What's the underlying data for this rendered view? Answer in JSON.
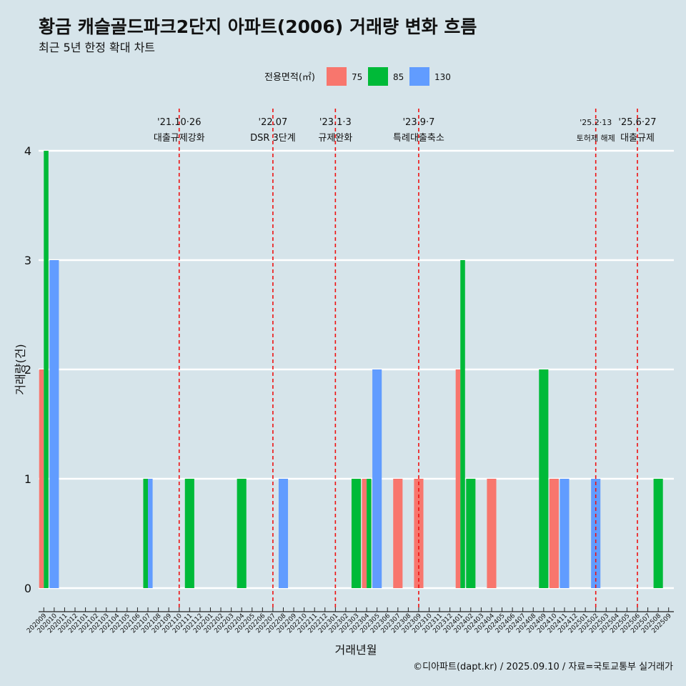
{
  "header": {
    "title": "황금 캐슬골드파크2단지 아파트(2006) 거래량 변화 흐름",
    "subtitle": "최근 5년 한정 확대 차트"
  },
  "caption": "©디아파트(dapt.kr) / 2025.09.10 / 자료=국토교통부 실거래가",
  "colors": {
    "s75": "#f8766d",
    "s85": "#00ba38",
    "s130": "#619cff",
    "event": "#ee1111",
    "grid": "#ffffff",
    "background": "#d6e4ea"
  },
  "chart_data": {
    "type": "bar",
    "title": "황금 캐슬골드파크2단지 아파트(2006) 거래량 변화 흐름",
    "xlabel": "거래년월",
    "ylabel": "거래량(건)",
    "ylim": [
      0,
      4
    ],
    "yticks": [
      0,
      1,
      2,
      3,
      4
    ],
    "legend": {
      "title": "전용면적(㎡)",
      "position": "top"
    },
    "categories": [
      "202009",
      "202010",
      "202011",
      "202012",
      "202101",
      "202102",
      "202103",
      "202104",
      "202105",
      "202106",
      "202107",
      "202108",
      "202109",
      "202110",
      "202111",
      "202112",
      "202201",
      "202202",
      "202203",
      "202204",
      "202205",
      "202206",
      "202207",
      "202208",
      "202209",
      "202210",
      "202211",
      "202212",
      "202301",
      "202302",
      "202303",
      "202304",
      "202305",
      "202306",
      "202307",
      "202308",
      "202309",
      "202310",
      "202311",
      "202312",
      "202401",
      "202402",
      "202403",
      "202404",
      "202405",
      "202406",
      "202407",
      "202408",
      "202409",
      "202410",
      "202411",
      "202412",
      "202501",
      "202502",
      "202503",
      "202504",
      "202505",
      "202506",
      "202507",
      "202508",
      "202509"
    ],
    "series": [
      {
        "name": "75",
        "points": [
          [
            "202009",
            2
          ],
          [
            "202304",
            1
          ],
          [
            "202307",
            1
          ],
          [
            "202309",
            1
          ],
          [
            "202401",
            2
          ],
          [
            "202404",
            1
          ],
          [
            "202410",
            1
          ]
        ]
      },
      {
        "name": "85",
        "points": [
          [
            "202009",
            4
          ],
          [
            "202107",
            1
          ],
          [
            "202111",
            1
          ],
          [
            "202204",
            1
          ],
          [
            "202303",
            1
          ],
          [
            "202304",
            1
          ],
          [
            "202401",
            3
          ],
          [
            "202402",
            1
          ],
          [
            "202409",
            2
          ],
          [
            "202508",
            1
          ]
        ]
      },
      {
        "name": "130",
        "points": [
          [
            "202010",
            3
          ],
          [
            "202107",
            1
          ],
          [
            "202208",
            1
          ],
          [
            "202305",
            2
          ],
          [
            "202411",
            1
          ],
          [
            "202502",
            1
          ]
        ]
      }
    ],
    "events": [
      {
        "month": "202110",
        "date": "'21.10·26",
        "label": "대출규제강화"
      },
      {
        "month": "202207",
        "date": "'22.07",
        "label": "DSR 3단계"
      },
      {
        "month": "202301",
        "date": "'23.1·3",
        "label": "규제완화"
      },
      {
        "month": "202309",
        "date": "'23.9·7",
        "label": "특례대출축소"
      },
      {
        "month": "202502",
        "date": "'25.2·13",
        "label": "토허제 해제"
      },
      {
        "month": "202506",
        "date": "'25.6·27",
        "label": "대출규제"
      }
    ]
  }
}
